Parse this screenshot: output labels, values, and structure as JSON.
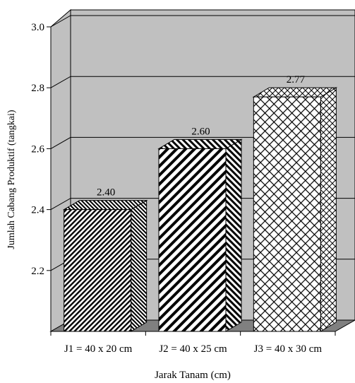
{
  "chart_data": {
    "type": "bar",
    "categories": [
      "J1 = 40 x 20 cm",
      "J2 = 40 x 25 cm",
      "J3 = 40 x 30 cm"
    ],
    "values": [
      2.4,
      2.6,
      2.77
    ],
    "data_labels": [
      "2.40",
      "2.60",
      "2.77"
    ],
    "xlabel": "Jarak Tanam (cm)",
    "ylabel": "Jumlah Cabang Produktif (tangkai)",
    "ylim": [
      2.0,
      3.0
    ],
    "yticks": [
      "2.2",
      "2.4",
      "2.6",
      "2.8",
      "3.0"
    ],
    "grid": true,
    "style": "3d",
    "bar_patterns": [
      "diagonal-dense",
      "diagonal-stripe",
      "crosshatch"
    ]
  }
}
